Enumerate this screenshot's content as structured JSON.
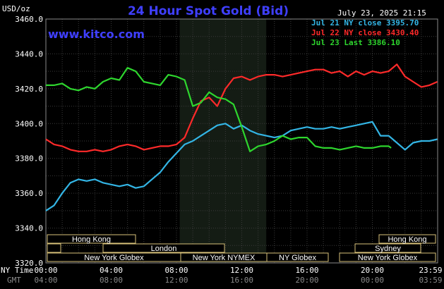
{
  "title": "24 Hour Spot Gold (Bid)",
  "website": "www.kitco.com",
  "timestamp": "July 23, 2025 21:15",
  "unit_label": "USD/oz",
  "ny_time_label": "NY Time",
  "gmt_label": "GMT",
  "chart_data": {
    "type": "line",
    "ylim": [
      3320,
      3460
    ],
    "yticks": [
      "3460.0",
      "3440.0",
      "3420.0",
      "3400.0",
      "3380.0",
      "3360.0",
      "3340.0",
      "3320.0"
    ],
    "xticks_ny": [
      "00:00",
      "04:00",
      "08:00",
      "12:00",
      "16:00",
      "20:00",
      "23:59"
    ],
    "xticks_gmt": [
      "04:00",
      "08:00",
      "12:00",
      "16:00",
      "20:00",
      "00:00",
      "03:59"
    ],
    "grid": true,
    "legend": "top-right",
    "series": [
      {
        "name": "Jul 21 NY close 3395.70",
        "color": "#33b5e5",
        "x": [
          0,
          0.5,
          1,
          1.5,
          2,
          2.5,
          3,
          3.5,
          4,
          4.5,
          5,
          5.5,
          6,
          6.5,
          7,
          7.5,
          8,
          8.5,
          9,
          9.5,
          10,
          10.5,
          11,
          11.5,
          12,
          12.5,
          13,
          13.5,
          14,
          14.5,
          15,
          15.5,
          16,
          16.5,
          17,
          17.5,
          18,
          18.5,
          19,
          19.5,
          20,
          20.5,
          21,
          21.5,
          22,
          22.5,
          23,
          23.5,
          23.98
        ],
        "y": [
          3350,
          3353,
          3360,
          3366,
          3368,
          3367,
          3368,
          3366,
          3365,
          3364,
          3365,
          3363,
          3364,
          3368,
          3372,
          3378,
          3383,
          3388,
          3390,
          3393,
          3396,
          3399,
          3400,
          3397,
          3399,
          3396,
          3394,
          3393,
          3392,
          3393,
          3396,
          3397,
          3398,
          3397,
          3397,
          3398,
          3397,
          3398,
          3399,
          3400,
          3401,
          3393,
          3393,
          3389,
          3385,
          3389,
          3390,
          3390,
          3391
        ]
      },
      {
        "name": "Jul 22 NY close 3430.40",
        "color": "#ff2a2a",
        "x": [
          0,
          0.5,
          1,
          1.5,
          2,
          2.5,
          3,
          3.5,
          4,
          4.5,
          5,
          5.5,
          6,
          6.5,
          7,
          7.5,
          8,
          8.5,
          9,
          9.5,
          10,
          10.5,
          11,
          11.5,
          12,
          12.5,
          13,
          13.5,
          14,
          14.5,
          15,
          15.5,
          16,
          16.5,
          17,
          17.5,
          18,
          18.5,
          19,
          19.5,
          20,
          20.5,
          21,
          21.5,
          22,
          22.5,
          23,
          23.5,
          23.98
        ],
        "y": [
          3391,
          3388,
          3387,
          3385,
          3384,
          3384,
          3385,
          3384,
          3385,
          3387,
          3388,
          3387,
          3385,
          3386,
          3387,
          3387,
          3388,
          3392,
          3403,
          3413,
          3415,
          3410,
          3420,
          3426,
          3427,
          3425,
          3427,
          3428,
          3428,
          3427,
          3428,
          3429,
          3430,
          3431,
          3431,
          3429,
          3430,
          3427,
          3430,
          3428,
          3430,
          3429,
          3430,
          3434,
          3427,
          3424,
          3421,
          3422,
          3424
        ]
      },
      {
        "name": "Jul 23 Last 3386.10",
        "color": "#2ed62e",
        "x": [
          0,
          0.5,
          1,
          1.5,
          2,
          2.5,
          3,
          3.5,
          4,
          4.5,
          5,
          5.5,
          6,
          6.5,
          7,
          7.5,
          8,
          8.5,
          9,
          9.5,
          10,
          10.5,
          11,
          11.5,
          12,
          12.5,
          13,
          13.5,
          14,
          14.5,
          15,
          15.5,
          16,
          16.5,
          17,
          17.5,
          18,
          18.5,
          19,
          19.5,
          20,
          20.5,
          21,
          21.15
        ],
        "y": [
          3422,
          3422,
          3423,
          3420,
          3419,
          3421,
          3420,
          3424,
          3426,
          3425,
          3432,
          3430,
          3424,
          3423,
          3422,
          3428,
          3427,
          3425,
          3410,
          3412,
          3418,
          3415,
          3414,
          3411,
          3398,
          3384,
          3387,
          3388,
          3390,
          3393,
          3391,
          3392,
          3392,
          3387,
          3386,
          3386,
          3385,
          3386,
          3387,
          3386,
          3386,
          3387,
          3387,
          3386
        ]
      }
    ]
  },
  "markets": {
    "row1": [
      "Hong Kong",
      "Hong Kong"
    ],
    "row2": [
      "London",
      "Sydney"
    ],
    "row3": [
      "New York Globex",
      "New York NYMEX",
      "NY Globex",
      "New York Globex"
    ]
  }
}
